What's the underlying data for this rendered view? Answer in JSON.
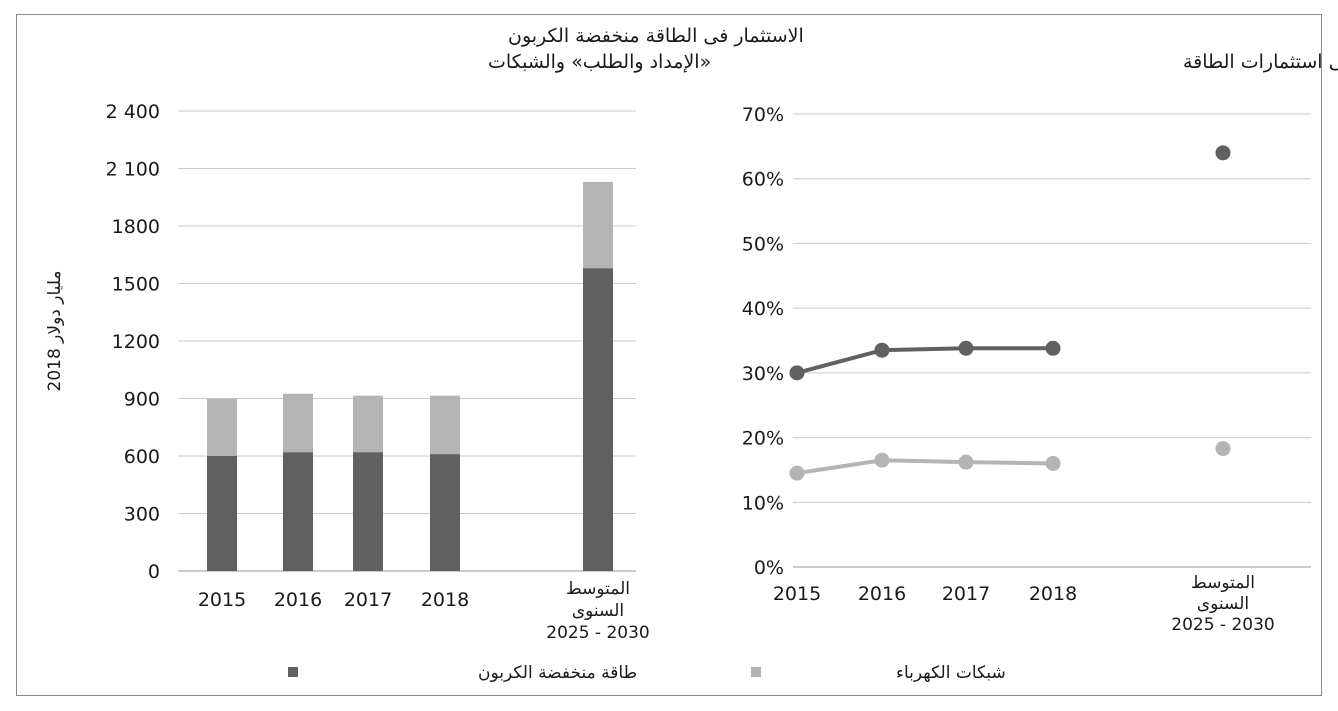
{
  "chart_data": [
    {
      "type": "bar",
      "stacked": true,
      "title_lines": [
        "الاستثمار فى الطاقة منخفضة الكربون",
        "«الإمداد والطلب»  والشبكات"
      ],
      "ylabel": "مليار دولار 2018",
      "ylim": [
        0,
        2400
      ],
      "yticks": [
        0,
        300,
        600,
        900,
        1200,
        1500,
        1800,
        2100,
        2400
      ],
      "ytick_labels": [
        "0",
        "300",
        "600",
        "900",
        "1200",
        "1500",
        "1800",
        "2 100",
        "2 400"
      ],
      "categories": [
        "2015",
        "2016",
        "2017",
        "2018",
        "المتوسط السنوى 2030 - 2025"
      ],
      "category_lines": [
        [
          "2015"
        ],
        [
          "2016"
        ],
        [
          "2017"
        ],
        [
          "2018"
        ],
        [
          "المتوسط",
          "السنوى",
          "2030 - 2025"
        ]
      ],
      "grid": true,
      "series": [
        {
          "name": "طاقة منخفضة الكربون",
          "color": "#606060",
          "values": [
            600,
            620,
            620,
            610,
            1580
          ]
        },
        {
          "name": "شبكات الكهرباء",
          "color": "#b4b4b4",
          "values": [
            300,
            305,
            295,
            305,
            450
          ]
        }
      ]
    },
    {
      "type": "scatter",
      "title": "حصة من إجمالى استثمارات الطاقة",
      "ylim": [
        0,
        70
      ],
      "yticks": [
        0,
        10,
        20,
        30,
        40,
        50,
        60,
        70
      ],
      "ytick_labels": [
        "0%",
        "10%",
        "20%",
        "30%",
        "40%",
        "50%",
        "60%",
        "70%"
      ],
      "categories": [
        "2015",
        "2016",
        "2017",
        "2018",
        "المتوسط السنوى 2030 - 2025"
      ],
      "category_lines": [
        [
          "2015"
        ],
        [
          "2016"
        ],
        [
          "2017"
        ],
        [
          "2018"
        ],
        [
          "المتوسط",
          "السنوى",
          "2030 - 2025"
        ]
      ],
      "grid": true,
      "connect_first_n": 4,
      "series": [
        {
          "name": "طاقة منخفضة الكربون",
          "color": "#606060",
          "values": [
            30,
            33.5,
            33.8,
            33.8,
            64
          ]
        },
        {
          "name": "شبكات الكهرباء",
          "color": "#b4b4b4",
          "values": [
            14.5,
            16.5,
            16.2,
            16,
            18.3
          ]
        }
      ]
    }
  ],
  "legend": [
    {
      "label": "طاقة منخفضة الكربون",
      "color": "#606060"
    },
    {
      "label": "شبكات الكهرباء",
      "color": "#b4b4b4"
    }
  ]
}
